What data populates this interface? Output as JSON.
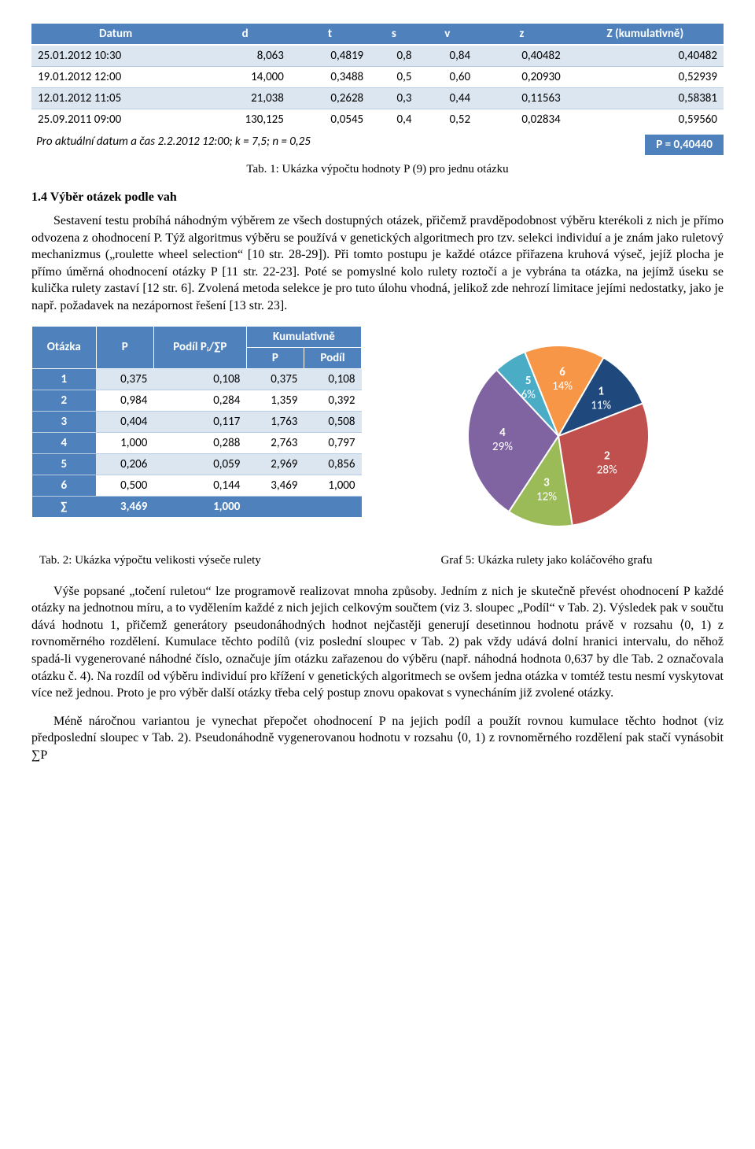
{
  "table1": {
    "headers": [
      "Datum",
      "d",
      "t",
      "s",
      "v",
      "z",
      "Z (kumulativně)"
    ],
    "rows": [
      [
        "25.01.2012 10:30",
        "8,063",
        "0,4819",
        "0,8",
        "0,84",
        "0,40482",
        "0,40482"
      ],
      [
        "19.01.2012 12:00",
        "14,000",
        "0,3488",
        "0,5",
        "0,60",
        "0,20930",
        "0,52939"
      ],
      [
        "12.01.2012 11:05",
        "21,038",
        "0,2628",
        "0,3",
        "0,44",
        "0,11563",
        "0,58381"
      ],
      [
        "25.09.2011 09:00",
        "130,125",
        "0,0545",
        "0,4",
        "0,52",
        "0,02834",
        "0,59560"
      ]
    ],
    "footer_left": "Pro aktuální datum a čas 2.2.2012  12:00; k = 7,5; n = 0,25",
    "footer_right": "P = 0,40440",
    "caption": "Tab. 1: Ukázka výpočtu hodnoty P (9) pro jednu otázku"
  },
  "section_title": "1.4  Výběr otázek podle vah",
  "para1": "Sestavení testu probíhá náhodným výběrem ze všech dostupných otázek, přičemž pravděpodobnost výběru kterékoli z nich je přímo odvozena z ohodnocení P. Týž algoritmus výběru se používá v genetických algoritmech pro tzv. selekci individuí a je znám jako ruletový mechanizmus („roulette wheel selection“ [10 str. 28-29]). Při tomto postupu je každé otázce přiřazena kruhová výseč, jejíž plocha je přímo úměrná ohodnocení otázky P [11 str. 22-23]. Poté se pomyslné kolo rulety roztočí a je vybrána ta otázka, na jejímž úseku se kulička rulety zastaví [12 str. 6]. Zvolená metoda selekce je pro tuto úlohu vhodná, jelikož zde nehrozí limitace jejími nedostatky, jako je např. požadavek na nezápornost řešení [13 str. 23].",
  "table2": {
    "superheaders": [
      "Otázka",
      "P",
      "Podíl Pᵢ/∑P",
      "Kumulativně"
    ],
    "subheaders": [
      "P",
      "Podíl"
    ],
    "rows": [
      [
        "1",
        "0,375",
        "0,108",
        "0,375",
        "0,108"
      ],
      [
        "2",
        "0,984",
        "0,284",
        "1,359",
        "0,392"
      ],
      [
        "3",
        "0,404",
        "0,117",
        "1,763",
        "0,508"
      ],
      [
        "4",
        "1,000",
        "0,288",
        "2,763",
        "0,797"
      ],
      [
        "5",
        "0,206",
        "0,059",
        "2,969",
        "0,856"
      ],
      [
        "6",
        "0,500",
        "0,144",
        "3,469",
        "1,000"
      ]
    ],
    "sumrow": [
      "∑",
      "3,469",
      "1,000",
      "",
      ""
    ],
    "caption": "Tab. 2: Ukázka výpočtu velikosti výseče rulety"
  },
  "pie": {
    "start_angle_deg": -60,
    "slices": [
      {
        "label": "1",
        "pct": "11%",
        "value": 0.108,
        "color": "#1f497d"
      },
      {
        "label": "2",
        "pct": "28%",
        "value": 0.284,
        "color": "#c0504d"
      },
      {
        "label": "3",
        "pct": "12%",
        "value": 0.117,
        "color": "#9bbb59"
      },
      {
        "label": "4",
        "pct": "29%",
        "value": 0.288,
        "color": "#8064a2"
      },
      {
        "label": "5",
        "pct": "6%",
        "value": 0.059,
        "color": "#4bacc6"
      },
      {
        "label": "6",
        "pct": "14%",
        "value": 0.144,
        "color": "#f79646"
      }
    ],
    "caption": "Graf 5: Ukázka rulety jako koláčového grafu"
  },
  "para2": "Výše popsané „točení ruletou“ lze programově realizovat mnoha způsoby. Jedním z nich je skutečně převést ohodnocení P každé otázky na jednotnou míru, a to vydělením každé z nich jejich celkovým součtem (viz 3. sloupec „Podíl“ v Tab. 2). Výsledek pak v součtu dává hodnotu 1, přičemž generátory pseudonáhodných hodnot nejčastěji generují desetinnou hodnotu právě v  rozsahu ⟨0, 1) z rovnoměrného rozdělení. Kumulace těchto podílů (viz poslední sloupec v Tab. 2) pak vždy udává dolní hranici intervalu, do něhož spadá-li vygenerované náhodné číslo, označuje jím otázku zařazenou do výběru (např. náhodná hodnota 0,637 by dle Tab. 2 označovala otázku č. 4). Na rozdíl od výběru individuí pro křížení v genetických algoritmech se ovšem jedna otázka v tomtéž testu nesmí vyskytovat více než jednou. Proto je pro výběr další otázky třeba celý postup znovu opakovat s vynecháním již zvolené otázky.",
  "para3": "Méně náročnou variantou je vynechat přepočet ohodnocení P na jejich podíl a použít rovnou kumulace těchto hodnot (viz předposlední sloupec v Tab. 2). Pseudonáhodně vygenerovanou hodnotu v rozsahu ⟨0, 1) z rovnoměrného rozdělení pak stačí vynásobit ∑P"
}
